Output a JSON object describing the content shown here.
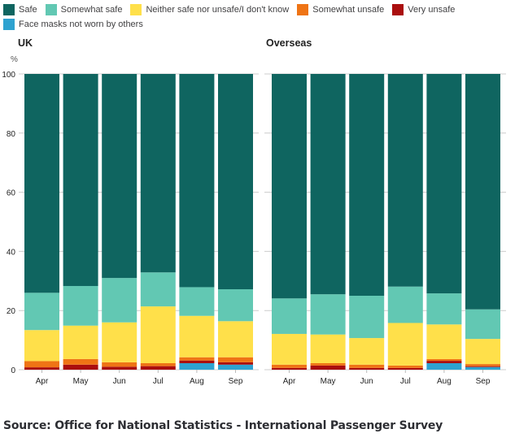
{
  "chart_data": {
    "type": "bar",
    "stacked": true,
    "ylabel": "%",
    "ylim": [
      0,
      100
    ],
    "yticks": [
      0,
      20,
      40,
      60,
      80,
      100
    ],
    "grid": true,
    "legend_position": "top",
    "categories": [
      "Apr",
      "May",
      "Jun",
      "Jul",
      "Aug",
      "Sep"
    ],
    "legend": [
      {
        "key": "safe",
        "name": "Safe",
        "color": "#0f6560"
      },
      {
        "key": "somewhat_safe",
        "name": "Somewhat safe",
        "color": "#62c8b3"
      },
      {
        "key": "neither",
        "name": "Neither safe nor unsafe/I don't know",
        "color": "#ffe04a"
      },
      {
        "key": "somewhat_unsafe",
        "name": "Somewhat unsafe",
        "color": "#ef7415"
      },
      {
        "key": "very_unsafe",
        "name": "Very unsafe",
        "color": "#aa0e0e"
      },
      {
        "key": "face_masks",
        "name": "Face masks not worn by others",
        "color": "#2ea2d0"
      }
    ],
    "panels": [
      {
        "title": "UK",
        "series": [
          {
            "key": "face_masks",
            "values": [
              0,
              0,
              0,
              0,
              2.2,
              1.7
            ]
          },
          {
            "key": "very_unsafe",
            "values": [
              0.8,
              1.7,
              1.0,
              1.2,
              0.9,
              0.8
            ]
          },
          {
            "key": "somewhat_unsafe",
            "values": [
              2.1,
              1.9,
              1.5,
              1.0,
              1.1,
              1.7
            ]
          },
          {
            "key": "neither",
            "values": [
              10.5,
              11.3,
              13.5,
              19.2,
              14.0,
              12.2
            ]
          },
          {
            "key": "somewhat_safe",
            "values": [
              12.6,
              13.4,
              15.0,
              11.5,
              9.7,
              10.8
            ]
          },
          {
            "key": "safe",
            "values": [
              74.0,
              71.7,
              69.0,
              67.1,
              72.1,
              72.8
            ]
          }
        ]
      },
      {
        "title": "Overseas",
        "series": [
          {
            "key": "face_masks",
            "values": [
              0,
              0,
              0,
              0,
              2.2,
              0.9
            ]
          },
          {
            "key": "very_unsafe",
            "values": [
              0.6,
              1.4,
              0.6,
              0.6,
              0.8,
              0.3
            ]
          },
          {
            "key": "somewhat_unsafe",
            "values": [
              1.1,
              0.8,
              1.1,
              0.8,
              0.6,
              0.7
            ]
          },
          {
            "key": "neither",
            "values": [
              10.4,
              9.7,
              9.0,
              14.4,
              11.7,
              8.5
            ]
          },
          {
            "key": "somewhat_safe",
            "values": [
              12.0,
              13.6,
              14.3,
              12.3,
              10.5,
              10.0
            ]
          },
          {
            "key": "safe",
            "values": [
              75.9,
              74.5,
              75.0,
              71.9,
              74.2,
              79.6
            ]
          }
        ]
      }
    ]
  },
  "source": "Source: Office for National Statistics - International Passenger Survey"
}
